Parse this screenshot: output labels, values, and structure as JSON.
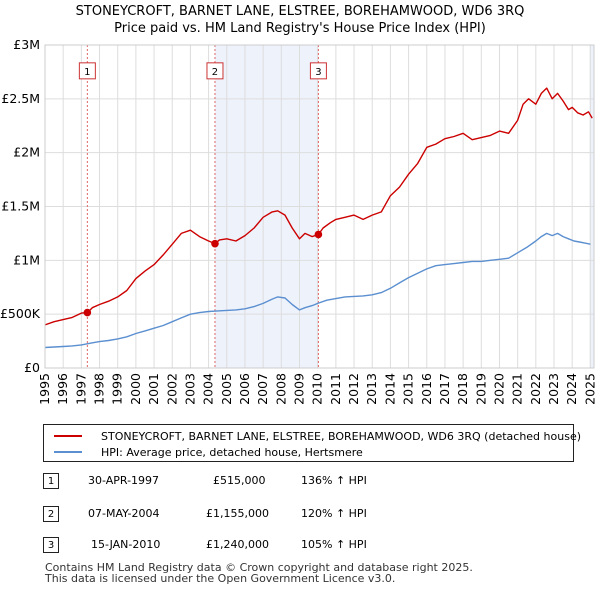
{
  "chart_data": {
    "type": "line",
    "title": "STONEYCROFT, BARNET LANE, ELSTREE, BOREHAMWOOD, WD6 3RQ",
    "subtitle": "Price paid vs. HM Land Registry's House Price Index (HPI)",
    "xlabel": "",
    "ylabel": "",
    "xlim": [
      1995.0,
      2025.2
    ],
    "ylim": [
      0,
      3000000
    ],
    "x_ticks": [
      "1995",
      "1996",
      "1997",
      "1998",
      "1999",
      "2000",
      "2001",
      "2002",
      "2003",
      "2004",
      "2005",
      "2006",
      "2007",
      "2008",
      "2009",
      "2010",
      "2011",
      "2012",
      "2013",
      "2014",
      "2015",
      "2016",
      "2017",
      "2018",
      "2019",
      "2020",
      "2021",
      "2022",
      "2023",
      "2024",
      "2025"
    ],
    "y_ticks": [
      {
        "value": 0,
        "label": "£0"
      },
      {
        "value": 500000,
        "label": "£500K"
      },
      {
        "value": 1000000,
        "label": "£1M"
      },
      {
        "value": 1500000,
        "label": "£1.5M"
      },
      {
        "value": 2000000,
        "label": "£2M"
      },
      {
        "value": 2500000,
        "label": "£2.5M"
      },
      {
        "value": 3000000,
        "label": "£3M"
      }
    ],
    "grid": true,
    "series": [
      {
        "name": "STONEYCROFT, BARNET LANE, ELSTREE, BOREHAMWOOD, WD6 3RQ (detached house)",
        "color": "#cc0000",
        "x": [
          1995.0,
          1995.5,
          1996.0,
          1996.5,
          1997.0,
          1997.33,
          1997.6,
          1998.0,
          1998.5,
          1999.0,
          1999.5,
          2000.0,
          2000.5,
          2001.0,
          2001.5,
          2002.0,
          2002.5,
          2003.0,
          2003.5,
          2004.0,
          2004.35,
          2004.6,
          2005.0,
          2005.5,
          2006.0,
          2006.5,
          2007.0,
          2007.5,
          2007.8,
          2008.2,
          2008.6,
          2009.0,
          2009.3,
          2009.7,
          2010.04,
          2010.3,
          2010.7,
          2011.0,
          2011.5,
          2012.0,
          2012.5,
          2013.0,
          2013.5,
          2014.0,
          2014.5,
          2015.0,
          2015.5,
          2016.0,
          2016.5,
          2017.0,
          2017.5,
          2018.0,
          2018.5,
          2019.0,
          2019.5,
          2020.0,
          2020.5,
          2021.0,
          2021.3,
          2021.6,
          2022.0,
          2022.3,
          2022.6,
          2022.9,
          2023.2,
          2023.5,
          2023.8,
          2024.0,
          2024.3,
          2024.6,
          2024.9,
          2025.1
        ],
        "values": [
          400000,
          430000,
          450000,
          470000,
          510000,
          515000,
          560000,
          590000,
          620000,
          660000,
          720000,
          830000,
          900000,
          960000,
          1050000,
          1150000,
          1250000,
          1280000,
          1220000,
          1180000,
          1155000,
          1190000,
          1200000,
          1180000,
          1230000,
          1300000,
          1400000,
          1450000,
          1460000,
          1420000,
          1300000,
          1200000,
          1250000,
          1220000,
          1240000,
          1300000,
          1350000,
          1380000,
          1400000,
          1420000,
          1380000,
          1420000,
          1450000,
          1600000,
          1680000,
          1800000,
          1900000,
          2050000,
          2080000,
          2130000,
          2150000,
          2180000,
          2120000,
          2140000,
          2160000,
          2200000,
          2180000,
          2300000,
          2450000,
          2500000,
          2450000,
          2550000,
          2600000,
          2500000,
          2550000,
          2480000,
          2400000,
          2420000,
          2370000,
          2350000,
          2380000,
          2320000
        ]
      },
      {
        "name": "HPI: Average price, detached house, Hertsmere",
        "color": "#5b8fd0",
        "x": [
          1995.0,
          1995.5,
          1996.0,
          1996.5,
          1997.0,
          1997.5,
          1998.0,
          1998.5,
          1999.0,
          1999.5,
          2000.0,
          2000.5,
          2001.0,
          2001.5,
          2002.0,
          2002.5,
          2003.0,
          2003.5,
          2004.0,
          2004.5,
          2005.0,
          2005.5,
          2006.0,
          2006.5,
          2007.0,
          2007.5,
          2007.8,
          2008.2,
          2008.6,
          2009.0,
          2009.3,
          2009.7,
          2010.0,
          2010.5,
          2011.0,
          2011.5,
          2012.0,
          2012.5,
          2013.0,
          2013.5,
          2014.0,
          2014.5,
          2015.0,
          2015.5,
          2016.0,
          2016.5,
          2017.0,
          2017.5,
          2018.0,
          2018.5,
          2019.0,
          2019.5,
          2020.0,
          2020.5,
          2021.0,
          2021.5,
          2022.0,
          2022.3,
          2022.6,
          2022.9,
          2023.2,
          2023.5,
          2023.8,
          2024.1,
          2024.4,
          2024.7,
          2025.0
        ],
        "values": [
          190000,
          195000,
          200000,
          205000,
          215000,
          230000,
          245000,
          255000,
          270000,
          290000,
          320000,
          345000,
          370000,
          395000,
          430000,
          465000,
          500000,
          515000,
          525000,
          530000,
          535000,
          540000,
          550000,
          570000,
          600000,
          640000,
          660000,
          650000,
          590000,
          540000,
          560000,
          580000,
          600000,
          630000,
          645000,
          660000,
          665000,
          670000,
          680000,
          700000,
          740000,
          790000,
          840000,
          880000,
          920000,
          950000,
          960000,
          970000,
          980000,
          990000,
          990000,
          1000000,
          1010000,
          1020000,
          1070000,
          1120000,
          1180000,
          1220000,
          1250000,
          1230000,
          1250000,
          1220000,
          1200000,
          1180000,
          1170000,
          1160000,
          1150000
        ]
      }
    ],
    "sales_markers": [
      {
        "label": "1",
        "x": 1997.33,
        "value": 515000,
        "box_value": 2760000
      },
      {
        "label": "2",
        "x": 2004.35,
        "value": 1155000,
        "box_value": 2760000
      },
      {
        "label": "3",
        "x": 2010.04,
        "value": 1240000,
        "box_value": 2760000
      }
    ]
  },
  "colors": {
    "property_line": "#cc0000",
    "hpi_line": "#5b8fd0",
    "marker_vline": "#e06666",
    "shade": "#eef2fb",
    "grid": "#dddddd"
  },
  "legend": {
    "property_label": "STONEYCROFT, BARNET LANE, ELSTREE, BOREHAMWOOD, WD6 3RQ (detached house)",
    "hpi_label": "HPI: Average price, detached house, Hertsmere"
  },
  "transactions": [
    {
      "num": "1",
      "date": "30-APR-1997",
      "price": "£515,000",
      "hpi": "136% ↑ HPI"
    },
    {
      "num": "2",
      "date": "07-MAY-2004",
      "price": "£1,155,000",
      "hpi": "120% ↑ HPI"
    },
    {
      "num": "3",
      "date": "15-JAN-2010",
      "price": "£1,240,000",
      "hpi": "105% ↑ HPI"
    }
  ],
  "footer": {
    "line1": "Contains HM Land Registry data © Crown copyright and database right 2025.",
    "line2": "This data is licensed under the Open Government Licence v3.0."
  }
}
